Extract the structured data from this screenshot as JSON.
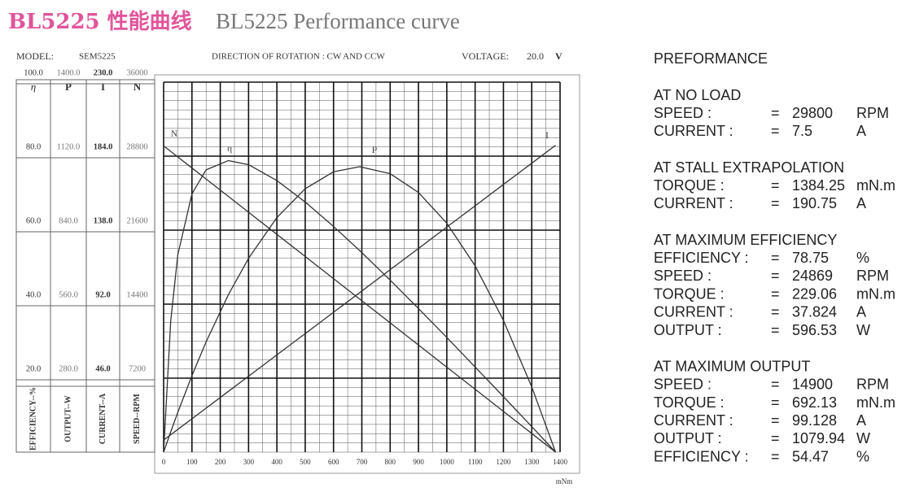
{
  "header": {
    "title": "BL5225 性能曲线",
    "subtitle": "BL5225 Performance curve"
  },
  "chart_data": {
    "type": "line",
    "model_label": "MODEL:",
    "model": "SEM5225",
    "direction": "DIRECTION OF ROTATION : CW AND CCW",
    "voltage_label": "VOLTAGE:",
    "voltage": "20.0",
    "voltage_unit": "V",
    "x_label": "mNm",
    "xlim": [
      0,
      1400
    ],
    "xticks": [
      0,
      100,
      200,
      300,
      400,
      500,
      600,
      700,
      800,
      900,
      1000,
      1100,
      1200,
      1300,
      1400
    ],
    "grid": true,
    "x": [
      0,
      25,
      50,
      100,
      150,
      229,
      300,
      400,
      500,
      600,
      692,
      800,
      900,
      1000,
      1100,
      1200,
      1300,
      1384.25
    ],
    "series": [
      {
        "name": "η",
        "axis_label": "EFFICIENCY--%",
        "color": "#333333",
        "ylim": [
          0,
          100
        ],
        "yticks": [
          {
            "value": 20,
            "label": "20.0"
          },
          {
            "value": 40,
            "label": "40.0"
          },
          {
            "value": 60,
            "label": "60.0"
          },
          {
            "value": 80,
            "label": "80.0"
          },
          {
            "value": 100,
            "label": "100.0"
          }
        ],
        "values": [
          0,
          35.4,
          53.3,
          69.8,
          76.3,
          78.8,
          77.7,
          73.4,
          67.6,
          61.0,
          54.5,
          46.5,
          38.8,
          31.0,
          23.0,
          15.0,
          6.9,
          0
        ]
      },
      {
        "name": "P",
        "axis_label": "OUTPUT--W",
        "color": "#333333",
        "ylim": [
          0,
          1400
        ],
        "yticks": [
          {
            "value": 280,
            "label": "280.0"
          },
          {
            "value": 560,
            "label": "560.0"
          },
          {
            "value": 840,
            "label": "840.0"
          },
          {
            "value": 1120,
            "label": "1120.0"
          },
          {
            "value": 1400,
            "label": "1400.0"
          }
        ],
        "values": [
          0,
          76.6,
          150.4,
          289.5,
          417.4,
          596.4,
          733.3,
          887.6,
          996.7,
          1060.8,
          1080.0,
          1053.7,
          982.5,
          866.2,
          704.9,
          498.4,
          246.9,
          0
        ]
      },
      {
        "name": "I",
        "axis_label": "CURRENT--A",
        "color": "#333333",
        "ylim": [
          0,
          230
        ],
        "yticks": [
          {
            "value": 46,
            "label": "46.0"
          },
          {
            "value": 92,
            "label": "92.0"
          },
          {
            "value": 138,
            "label": "138.0"
          },
          {
            "value": 184,
            "label": "184.0"
          },
          {
            "value": 230,
            "label": "230.0"
          }
        ],
        "values": [
          7.5,
          10.81,
          14.12,
          20.74,
          27.36,
          37.82,
          47.21,
          60.45,
          73.69,
          86.93,
          99.11,
          113.4,
          126.6,
          139.9,
          153.1,
          166.4,
          179.6,
          190.75
        ]
      },
      {
        "name": "N",
        "axis_label": "SPEED--RPM",
        "color": "#333333",
        "ylim": [
          0,
          36000
        ],
        "yticks": [
          7200,
          14400,
          21600,
          28800,
          36000
        ],
        "values": [
          29800,
          29262,
          28724,
          27647,
          26571,
          24870,
          23342,
          21189,
          19036,
          16883,
          14903,
          12578,
          10425,
          8272,
          6119,
          3966,
          1814,
          0
        ]
      }
    ]
  },
  "performance": {
    "title": "PREFORMANCE",
    "sections": [
      {
        "heading": "AT NO LOAD",
        "rows": [
          {
            "label": "SPEED :",
            "eq": "=",
            "value": 29800,
            "unit": "RPM"
          },
          {
            "label": "CURRENT :",
            "eq": "=",
            "value": 7.5,
            "unit": "A"
          }
        ]
      },
      {
        "heading": "AT STALL EXTRAPOLATION",
        "rows": [
          {
            "label": "TORQUE :",
            "eq": "=",
            "value": 1384.25,
            "unit": "mN.m"
          },
          {
            "label": "CURRENT :",
            "eq": "=",
            "value": 190.75,
            "unit": "A"
          }
        ]
      },
      {
        "heading": "AT MAXIMUM EFFICIENCY",
        "rows": [
          {
            "label": "EFFICIENCY :",
            "eq": "=",
            "value": 78.75,
            "unit": "%"
          },
          {
            "label": "SPEED :",
            "eq": "=",
            "value": 24869,
            "unit": "RPM"
          },
          {
            "label": "TORQUE :",
            "eq": "=",
            "value": 229.06,
            "unit": "mN.m"
          },
          {
            "label": "CURRENT :",
            "eq": "=",
            "value": 37.824,
            "unit": "A"
          },
          {
            "label": "OUTPUT :",
            "eq": "=",
            "value": 596.53,
            "unit": "W"
          }
        ]
      },
      {
        "heading": "AT MAXIMUM OUTPUT",
        "rows": [
          {
            "label": "SPEED :",
            "eq": "=",
            "value": 14900,
            "unit": "RPM"
          },
          {
            "label": "TORQUE :",
            "eq": "=",
            "value": 692.13,
            "unit": "mN.m"
          },
          {
            "label": "CURRENT :",
            "eq": "=",
            "value": 99.128,
            "unit": "A"
          },
          {
            "label": "OUTPUT :",
            "eq": "=",
            "value": 1079.94,
            "unit": "W"
          },
          {
            "label": "EFFICIENCY :",
            "eq": "=",
            "value": 54.47,
            "unit": "%"
          }
        ]
      }
    ]
  }
}
